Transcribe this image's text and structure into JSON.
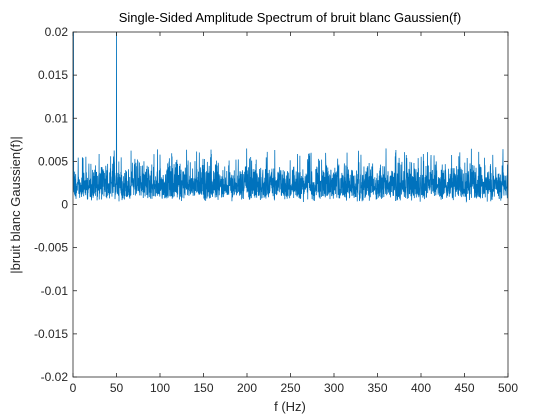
{
  "chart_data": {
    "type": "line",
    "title": "Single-Sided Amplitude Spectrum of bruit blanc Gaussien(f)",
    "xlabel": "f (Hz)",
    "ylabel": "|bruit blanc Gaussien(f)|",
    "xlim": [
      0,
      500
    ],
    "ylim": [
      -0.02,
      0.02
    ],
    "x_ticks": [
      0,
      50,
      100,
      150,
      200,
      250,
      300,
      350,
      400,
      450,
      500
    ],
    "x_tick_labels": [
      "0",
      "50",
      "100",
      "150",
      "200",
      "250",
      "300",
      "350",
      "400",
      "450",
      "500"
    ],
    "y_ticks": [
      -0.02,
      -0.015,
      -0.01,
      -0.005,
      0,
      0.005,
      0.01,
      0.015,
      0.02
    ],
    "y_tick_labels": [
      "-0.02",
      "-0.015",
      "-0.01",
      "-0.005",
      "0",
      "0.005",
      "0.01",
      "0.015",
      "0.02"
    ],
    "grid": false,
    "series": [
      {
        "color": "#0072bd",
        "noise_floor": {
          "x_range": [
            0,
            500
          ],
          "typical_min": 0.0005,
          "typical_max": 0.005,
          "mean": 0.0025,
          "occasional_peaks_max": 0.0065
        },
        "peaks": [
          {
            "x": 0.5,
            "y": 0.02
          },
          {
            "x": 50,
            "y": 0.02
          }
        ]
      }
    ]
  }
}
